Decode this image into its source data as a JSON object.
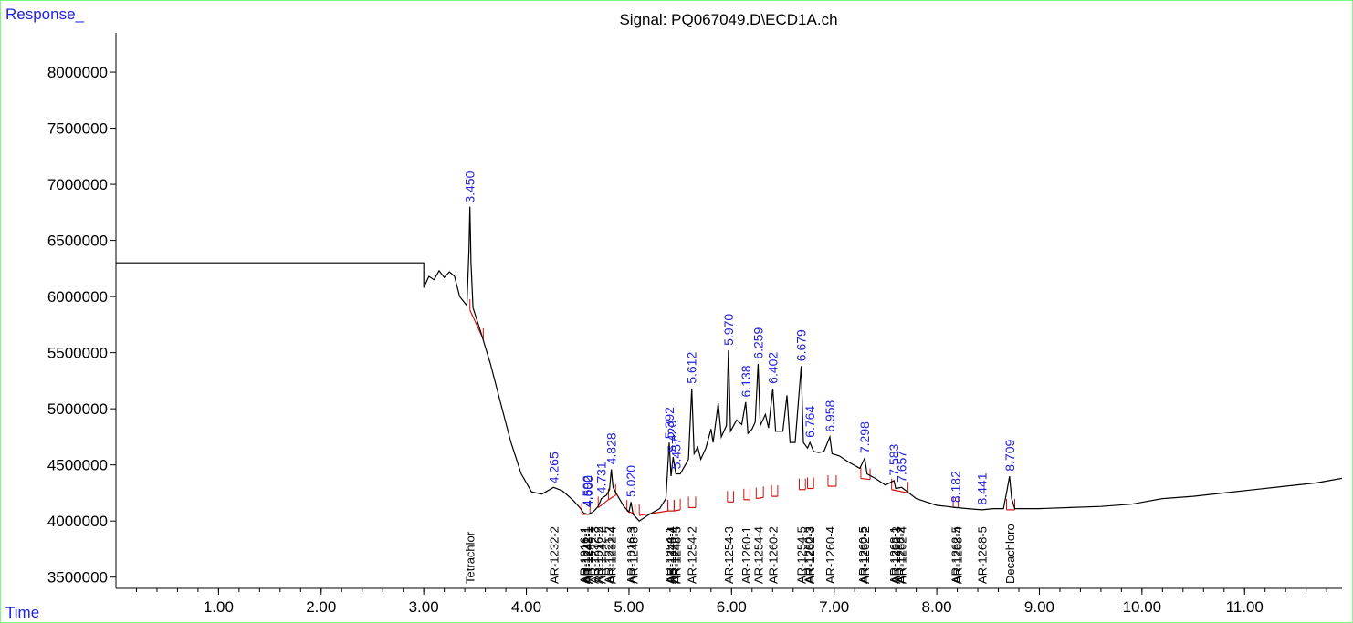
{
  "chart_data": {
    "type": "line",
    "title": "Signal: PQ067049.D\\ECD1A.ch",
    "ylabel": "Response_",
    "xlabel": "Time",
    "xlim": [
      0.0,
      11.95
    ],
    "ylim": [
      3400000,
      8350000
    ],
    "x_ticks": [
      "1.00",
      "2.00",
      "3.00",
      "4.00",
      "5.00",
      "6.00",
      "7.00",
      "8.00",
      "9.00",
      "10.00",
      "11.00"
    ],
    "y_ticks": [
      "3500000",
      "4000000",
      "4500000",
      "5000000",
      "5500000",
      "6000000",
      "6500000",
      "7000000",
      "7500000",
      "8000000"
    ],
    "trace": [
      [
        0.0,
        6300000
      ],
      [
        3.0,
        6300000
      ],
      [
        3.0,
        6080000
      ],
      [
        3.05,
        6180000
      ],
      [
        3.1,
        6150000
      ],
      [
        3.15,
        6230000
      ],
      [
        3.2,
        6170000
      ],
      [
        3.25,
        6220000
      ],
      [
        3.3,
        6180000
      ],
      [
        3.35,
        6000000
      ],
      [
        3.42,
        5920000
      ],
      [
        3.44,
        6400000
      ],
      [
        3.45,
        6800000
      ],
      [
        3.46,
        6300000
      ],
      [
        3.48,
        5900000
      ],
      [
        3.55,
        5700000
      ],
      [
        3.65,
        5400000
      ],
      [
        3.75,
        5050000
      ],
      [
        3.85,
        4700000
      ],
      [
        3.95,
        4420000
      ],
      [
        4.05,
        4260000
      ],
      [
        4.15,
        4240000
      ],
      [
        4.265,
        4300000
      ],
      [
        4.35,
        4270000
      ],
      [
        4.45,
        4190000
      ],
      [
        4.52,
        4120000
      ],
      [
        4.56,
        4070000
      ],
      [
        4.6,
        4060000
      ],
      [
        4.65,
        4080000
      ],
      [
        4.7,
        4130000
      ],
      [
        4.731,
        4200000
      ],
      [
        4.78,
        4230000
      ],
      [
        4.81,
        4280000
      ],
      [
        4.828,
        4460000
      ],
      [
        4.845,
        4300000
      ],
      [
        4.88,
        4240000
      ],
      [
        4.95,
        4130000
      ],
      [
        5.0,
        4080000
      ],
      [
        5.02,
        4170000
      ],
      [
        5.04,
        4060000
      ],
      [
        5.1,
        4000000
      ],
      [
        5.2,
        4060000
      ],
      [
        5.3,
        4110000
      ],
      [
        5.36,
        4200000
      ],
      [
        5.392,
        4700000
      ],
      [
        5.41,
        4400000
      ],
      [
        5.43,
        4570000
      ],
      [
        5.457,
        4420000
      ],
      [
        5.5,
        4420000
      ],
      [
        5.55,
        4500000
      ],
      [
        5.58,
        4550000
      ],
      [
        5.612,
        5180000
      ],
      [
        5.635,
        4600000
      ],
      [
        5.67,
        4660000
      ],
      [
        5.7,
        4550000
      ],
      [
        5.75,
        4650000
      ],
      [
        5.8,
        4820000
      ],
      [
        5.82,
        4700000
      ],
      [
        5.87,
        5050000
      ],
      [
        5.9,
        4750000
      ],
      [
        5.95,
        4850000
      ],
      [
        5.97,
        5520000
      ],
      [
        5.99,
        4800000
      ],
      [
        6.05,
        4900000
      ],
      [
        6.1,
        4860000
      ],
      [
        6.138,
        5060000
      ],
      [
        6.16,
        4780000
      ],
      [
        6.2,
        4820000
      ],
      [
        6.23,
        4880000
      ],
      [
        6.259,
        5400000
      ],
      [
        6.28,
        4850000
      ],
      [
        6.33,
        4950000
      ],
      [
        6.36,
        4830000
      ],
      [
        6.402,
        5180000
      ],
      [
        6.43,
        4800000
      ],
      [
        6.5,
        4800000
      ],
      [
        6.54,
        5120000
      ],
      [
        6.57,
        4700000
      ],
      [
        6.62,
        4700000
      ],
      [
        6.679,
        5380000
      ],
      [
        6.7,
        4700000
      ],
      [
        6.74,
        4650000
      ],
      [
        6.764,
        4700000
      ],
      [
        6.8,
        4620000
      ],
      [
        6.85,
        4610000
      ],
      [
        6.9,
        4620000
      ],
      [
        6.958,
        4750000
      ],
      [
        6.98,
        4600000
      ],
      [
        7.05,
        4580000
      ],
      [
        7.15,
        4520000
      ],
      [
        7.25,
        4470000
      ],
      [
        7.298,
        4560000
      ],
      [
        7.32,
        4420000
      ],
      [
        7.4,
        4380000
      ],
      [
        7.5,
        4320000
      ],
      [
        7.583,
        4360000
      ],
      [
        7.6,
        4290000
      ],
      [
        7.657,
        4300000
      ],
      [
        7.7,
        4270000
      ],
      [
        7.8,
        4200000
      ],
      [
        7.9,
        4170000
      ],
      [
        8.0,
        4140000
      ],
      [
        8.1,
        4130000
      ],
      [
        8.182,
        4120000
      ],
      [
        8.3,
        4110000
      ],
      [
        8.441,
        4100000
      ],
      [
        8.55,
        4110000
      ],
      [
        8.65,
        4110000
      ],
      [
        8.68,
        4250000
      ],
      [
        8.709,
        4400000
      ],
      [
        8.73,
        4200000
      ],
      [
        8.76,
        4110000
      ],
      [
        8.85,
        4110000
      ],
      [
        9.0,
        4110000
      ],
      [
        9.3,
        4120000
      ],
      [
        9.6,
        4130000
      ],
      [
        9.9,
        4150000
      ],
      [
        10.2,
        4200000
      ],
      [
        10.5,
        4220000
      ],
      [
        10.8,
        4250000
      ],
      [
        11.1,
        4280000
      ],
      [
        11.4,
        4310000
      ],
      [
        11.7,
        4340000
      ],
      [
        11.95,
        4380000
      ]
    ],
    "peak_labels": [
      {
        "t": 3.45,
        "label": "3.450",
        "y": 6800000
      },
      {
        "t": 4.265,
        "label": "4.265",
        "y": 4300000
      },
      {
        "t": 4.59,
        "label": "4.592",
        "y": 4090000
      },
      {
        "t": 4.6,
        "label": "4.600",
        "y": 4090000
      },
      {
        "t": 4.731,
        "label": "4.731",
        "y": 4210000
      },
      {
        "t": 4.828,
        "label": "4.828",
        "y": 4470000
      },
      {
        "t": 5.02,
        "label": "5.020",
        "y": 4180000
      },
      {
        "t": 5.392,
        "label": "5.392",
        "y": 4700000
      },
      {
        "t": 5.42,
        "label": "5.420",
        "y": 4580000
      },
      {
        "t": 5.457,
        "label": "5.457",
        "y": 4430000
      },
      {
        "t": 5.612,
        "label": "5.612",
        "y": 5190000
      },
      {
        "t": 5.97,
        "label": "5.970",
        "y": 5530000
      },
      {
        "t": 6.138,
        "label": "6.138",
        "y": 5070000
      },
      {
        "t": 6.259,
        "label": "6.259",
        "y": 5410000
      },
      {
        "t": 6.402,
        "label": "6.402",
        "y": 5190000
      },
      {
        "t": 6.679,
        "label": "6.679",
        "y": 5390000
      },
      {
        "t": 6.764,
        "label": "6.764",
        "y": 4710000
      },
      {
        "t": 6.958,
        "label": "6.958",
        "y": 4760000
      },
      {
        "t": 7.298,
        "label": "7.298",
        "y": 4570000
      },
      {
        "t": 7.583,
        "label": "7.583",
        "y": 4370000
      },
      {
        "t": 7.657,
        "label": "7.657",
        "y": 4310000
      },
      {
        "t": 8.182,
        "label": "8.182",
        "y": 4130000
      },
      {
        "t": 8.441,
        "label": "8.441",
        "y": 4110000
      },
      {
        "t": 8.709,
        "label": "8.709",
        "y": 4410000
      }
    ],
    "compound_labels": [
      {
        "t": 3.45,
        "label": "Tetrachlor"
      },
      {
        "t": 4.265,
        "label": "AR-1232-2"
      },
      {
        "t": 4.56,
        "label": "AR-1016-1"
      },
      {
        "t": 4.575,
        "label": "AR-1221-1"
      },
      {
        "t": 4.59,
        "label": "AR-1242-1"
      },
      {
        "t": 4.6,
        "label": "AR-1248-1"
      },
      {
        "t": 4.66,
        "label": "AR-1232-3"
      },
      {
        "t": 4.7,
        "label": "AR-1016-2"
      },
      {
        "t": 4.731,
        "label": "AR-1242-2"
      },
      {
        "t": 4.8,
        "label": "AR-1221-2"
      },
      {
        "t": 4.828,
        "label": "AR-1232-4"
      },
      {
        "t": 5.02,
        "label": "AR-1016-3"
      },
      {
        "t": 5.04,
        "label": "AR-1248-3"
      },
      {
        "t": 5.39,
        "label": "AR-1254-1"
      },
      {
        "t": 5.41,
        "label": "AR-1248-4"
      },
      {
        "t": 5.44,
        "label": "AR-1242-4"
      },
      {
        "t": 5.457,
        "label": "AR-1248-5"
      },
      {
        "t": 5.612,
        "label": "AR-1254-2"
      },
      {
        "t": 5.97,
        "label": "AR-1254-3"
      },
      {
        "t": 6.138,
        "label": "AR-1260-1"
      },
      {
        "t": 6.259,
        "label": "AR-1254-4"
      },
      {
        "t": 6.402,
        "label": "AR-1260-2"
      },
      {
        "t": 6.679,
        "label": "AR-1254-5"
      },
      {
        "t": 6.75,
        "label": "AR-1260-3"
      },
      {
        "t": 6.764,
        "label": "AR-1262-3"
      },
      {
        "t": 6.958,
        "label": "AR-1260-4"
      },
      {
        "t": 7.28,
        "label": "AR-1260-5"
      },
      {
        "t": 7.298,
        "label": "AR-1262-2"
      },
      {
        "t": 7.583,
        "label": "AR-1268-1"
      },
      {
        "t": 7.6,
        "label": "AR-1262-3"
      },
      {
        "t": 7.64,
        "label": "AR-1268-2"
      },
      {
        "t": 7.657,
        "label": "AR-1262-4"
      },
      {
        "t": 8.18,
        "label": "AR-1262-5"
      },
      {
        "t": 8.2,
        "label": "AR-1268-4"
      },
      {
        "t": 8.441,
        "label": "AR-1268-5"
      },
      {
        "t": 8.709,
        "label": "Decachloro"
      }
    ],
    "integration_segments": [
      [
        [
          3.45,
          5880000
        ],
        [
          3.58,
          5620000
        ]
      ],
      [
        [
          4.54,
          4060000
        ],
        [
          4.62,
          4060000
        ]
      ],
      [
        [
          4.7,
          4120000
        ],
        [
          4.8,
          4190000
        ]
      ],
      [
        [
          4.8,
          4190000
        ],
        [
          4.87,
          4230000
        ]
      ],
      [
        [
          4.98,
          4090000
        ],
        [
          5.06,
          4060000
        ]
      ],
      [
        [
          5.1,
          4050000
        ],
        [
          5.38,
          4090000
        ]
      ],
      [
        [
          5.38,
          4090000
        ],
        [
          5.44,
          4090000
        ]
      ],
      [
        [
          5.44,
          4090000
        ],
        [
          5.5,
          4100000
        ]
      ],
      [
        [
          5.58,
          4120000
        ],
        [
          5.65,
          4120000
        ]
      ],
      [
        [
          5.96,
          4170000
        ],
        [
          6.02,
          4170000
        ]
      ],
      [
        [
          6.12,
          4190000
        ],
        [
          6.18,
          4190000
        ]
      ],
      [
        [
          6.24,
          4200000
        ],
        [
          6.31,
          4210000
        ]
      ],
      [
        [
          6.39,
          4220000
        ],
        [
          6.45,
          4220000
        ]
      ],
      [
        [
          6.66,
          4280000
        ],
        [
          6.72,
          4280000
        ]
      ],
      [
        [
          6.74,
          4290000
        ],
        [
          6.8,
          4290000
        ]
      ],
      [
        [
          6.94,
          4310000
        ],
        [
          7.02,
          4310000
        ]
      ],
      [
        [
          7.26,
          4380000
        ],
        [
          7.35,
          4370000
        ]
      ],
      [
        [
          7.56,
          4280000
        ],
        [
          7.72,
          4250000
        ]
      ],
      [
        [
          8.16,
          4120000
        ],
        [
          8.21,
          4120000
        ]
      ],
      [
        [
          8.68,
          4100000
        ],
        [
          8.76,
          4100000
        ]
      ]
    ]
  }
}
